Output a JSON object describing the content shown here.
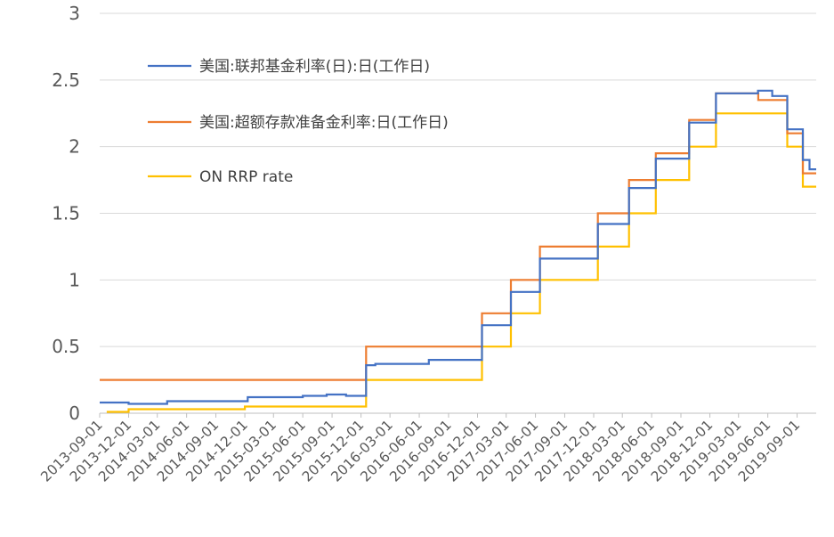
{
  "chart_data": {
    "type": "line",
    "title": "",
    "xlabel": "",
    "ylabel": "",
    "ylim": [
      0,
      3
    ],
    "yticks": [
      "0",
      "0.5",
      "1",
      "1.5",
      "2",
      "2.5",
      "3"
    ],
    "grid": "horizontal",
    "legend_position": "top-left",
    "x_start": "2013-09-01",
    "x_end": "2019-10-31",
    "xtick_labels": [
      "2013-09-01",
      "2013-12-01",
      "2014-03-01",
      "2014-06-01",
      "2014-09-01",
      "2014-12-01",
      "2015-03-01",
      "2015-06-01",
      "2015-09-01",
      "2015-12-01",
      "2016-03-01",
      "2016-06-01",
      "2016-09-01",
      "2016-12-01",
      "2017-03-01",
      "2017-06-01",
      "2017-09-01",
      "2017-12-01",
      "2018-03-01",
      "2018-06-01",
      "2018-09-01",
      "2018-12-01",
      "2019-03-01",
      "2019-06-01",
      "2019-09-01"
    ],
    "series": [
      {
        "name": "美国:联邦基金利率(日):日(工作日)",
        "color": "#4472C4",
        "style": "step",
        "x": [
          "2013-09-01",
          "2013-10-15",
          "2013-12-01",
          "2014-02-01",
          "2014-04-01",
          "2014-07-01",
          "2014-09-01",
          "2014-11-01",
          "2014-12-10",
          "2015-03-01",
          "2015-06-01",
          "2015-08-15",
          "2015-10-15",
          "2015-12-17",
          "2016-01-15",
          "2016-05-01",
          "2016-07-01",
          "2016-10-01",
          "2016-12-15",
          "2017-03-16",
          "2017-06-15",
          "2017-12-14",
          "2018-03-22",
          "2018-06-14",
          "2018-09-27",
          "2018-12-20",
          "2019-03-01",
          "2019-05-01",
          "2019-06-15",
          "2019-08-01",
          "2019-09-19",
          "2019-10-10",
          "2019-10-31"
        ],
        "values": [
          0.08,
          0.08,
          0.07,
          0.07,
          0.09,
          0.09,
          0.09,
          0.09,
          0.12,
          0.12,
          0.13,
          0.14,
          0.13,
          0.36,
          0.37,
          0.37,
          0.4,
          0.4,
          0.66,
          0.91,
          1.16,
          1.42,
          1.69,
          1.91,
          2.18,
          2.4,
          2.4,
          2.42,
          2.38,
          2.13,
          1.9,
          1.83,
          1.83
        ]
      },
      {
        "name": "美国:超额存款准备金利率:日(工作日)",
        "color": "#ED7D31",
        "style": "step",
        "x": [
          "2013-09-01",
          "2015-12-17",
          "2016-12-15",
          "2017-03-16",
          "2017-06-15",
          "2017-12-14",
          "2018-03-22",
          "2018-06-14",
          "2018-09-27",
          "2018-12-20",
          "2019-05-02",
          "2019-08-01",
          "2019-09-19",
          "2019-10-31"
        ],
        "values": [
          0.25,
          0.5,
          0.75,
          1.0,
          1.25,
          1.5,
          1.75,
          1.95,
          2.2,
          2.4,
          2.35,
          2.1,
          1.8,
          1.8
        ]
      },
      {
        "name": "ON RRP rate",
        "color": "#FFC000",
        "style": "step",
        "x": [
          "2013-09-23",
          "2013-12-01",
          "2014-12-01",
          "2014-12-31",
          "2015-12-17",
          "2016-12-15",
          "2017-03-16",
          "2017-06-15",
          "2017-12-14",
          "2018-03-22",
          "2018-06-14",
          "2018-09-27",
          "2018-12-20",
          "2019-08-01",
          "2019-09-19",
          "2019-10-31"
        ],
        "values": [
          0.01,
          0.03,
          0.05,
          0.05,
          0.25,
          0.5,
          0.75,
          1.0,
          1.25,
          1.5,
          1.75,
          2.0,
          2.25,
          2.0,
          1.7,
          1.7
        ]
      }
    ]
  }
}
